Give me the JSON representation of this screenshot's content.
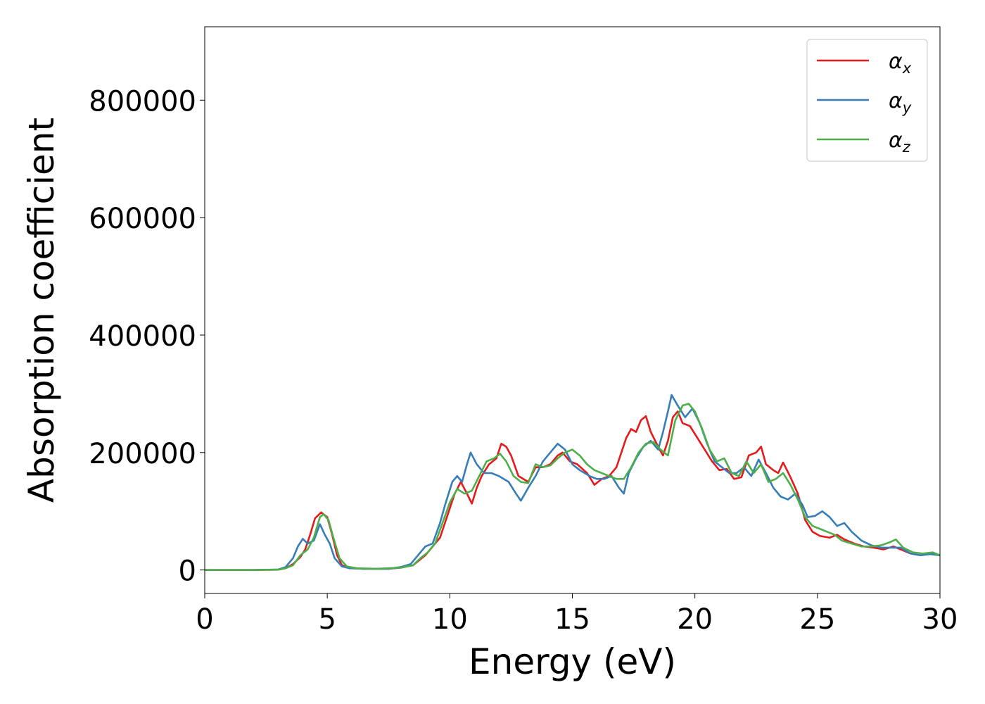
{
  "chart_data": {
    "type": "line",
    "title": "",
    "xlabel": "Energy (eV)",
    "ylabel": "Absorption coefficient",
    "xlim": [
      0,
      30
    ],
    "ylim": [
      -40000,
      925000
    ],
    "xticks": [
      0,
      5,
      10,
      15,
      20,
      25,
      30
    ],
    "xtick_labels": [
      "0",
      "5",
      "10",
      "15",
      "20",
      "25",
      "30"
    ],
    "yticks": [
      0,
      200000,
      400000,
      600000,
      800000
    ],
    "ytick_labels": [
      "0",
      "200000",
      "400000",
      "600000",
      "800000"
    ],
    "grid": false,
    "legend_position": "top-right",
    "series": [
      {
        "name": "α",
        "subscript": "x",
        "color": "#e41a1c",
        "points": [
          [
            0,
            0
          ],
          [
            1,
            0
          ],
          [
            2,
            0
          ],
          [
            3,
            500
          ],
          [
            3.3,
            3000
          ],
          [
            3.6,
            10000
          ],
          [
            3.9,
            22000
          ],
          [
            4.1,
            35000
          ],
          [
            4.3,
            60000
          ],
          [
            4.5,
            88000
          ],
          [
            4.75,
            98000
          ],
          [
            5.0,
            90000
          ],
          [
            5.2,
            60000
          ],
          [
            5.4,
            25000
          ],
          [
            5.6,
            8000
          ],
          [
            5.9,
            3000
          ],
          [
            6.5,
            2000
          ],
          [
            7.5,
            2000
          ],
          [
            8.0,
            4000
          ],
          [
            8.5,
            8000
          ],
          [
            9.0,
            25000
          ],
          [
            9.3,
            40000
          ],
          [
            9.6,
            55000
          ],
          [
            9.8,
            80000
          ],
          [
            10.0,
            105000
          ],
          [
            10.2,
            130000
          ],
          [
            10.45,
            150000
          ],
          [
            10.7,
            130000
          ],
          [
            10.9,
            113000
          ],
          [
            11.1,
            140000
          ],
          [
            11.3,
            160000
          ],
          [
            11.6,
            180000
          ],
          [
            11.9,
            190000
          ],
          [
            12.1,
            215000
          ],
          [
            12.3,
            210000
          ],
          [
            12.5,
            195000
          ],
          [
            12.8,
            160000
          ],
          [
            13.2,
            150000
          ],
          [
            13.5,
            175000
          ],
          [
            13.8,
            175000
          ],
          [
            14.1,
            180000
          ],
          [
            14.4,
            195000
          ],
          [
            14.6,
            200000
          ],
          [
            14.9,
            185000
          ],
          [
            15.2,
            180000
          ],
          [
            15.6,
            165000
          ],
          [
            15.9,
            145000
          ],
          [
            16.2,
            155000
          ],
          [
            16.5,
            160000
          ],
          [
            16.8,
            175000
          ],
          [
            17.0,
            200000
          ],
          [
            17.2,
            225000
          ],
          [
            17.4,
            240000
          ],
          [
            17.6,
            235000
          ],
          [
            17.8,
            255000
          ],
          [
            18.0,
            262000
          ],
          [
            18.2,
            235000
          ],
          [
            18.5,
            210000
          ],
          [
            18.7,
            195000
          ],
          [
            18.9,
            220000
          ],
          [
            19.1,
            260000
          ],
          [
            19.3,
            270000
          ],
          [
            19.5,
            250000
          ],
          [
            19.8,
            245000
          ],
          [
            20.1,
            225000
          ],
          [
            20.4,
            205000
          ],
          [
            20.7,
            185000
          ],
          [
            21.0,
            170000
          ],
          [
            21.3,
            172000
          ],
          [
            21.6,
            155000
          ],
          [
            21.9,
            158000
          ],
          [
            22.2,
            195000
          ],
          [
            22.5,
            200000
          ],
          [
            22.7,
            210000
          ],
          [
            22.9,
            180000
          ],
          [
            23.2,
            170000
          ],
          [
            23.4,
            165000
          ],
          [
            23.6,
            183000
          ],
          [
            23.9,
            158000
          ],
          [
            24.2,
            130000
          ],
          [
            24.5,
            85000
          ],
          [
            24.8,
            65000
          ],
          [
            25.1,
            58000
          ],
          [
            25.5,
            55000
          ],
          [
            25.8,
            60000
          ],
          [
            26.1,
            52000
          ],
          [
            26.5,
            45000
          ],
          [
            26.9,
            40000
          ],
          [
            27.3,
            38000
          ],
          [
            27.7,
            35000
          ],
          [
            28.1,
            40000
          ],
          [
            28.4,
            35000
          ],
          [
            28.8,
            28000
          ],
          [
            29.2,
            25000
          ],
          [
            29.6,
            28000
          ],
          [
            30,
            25000
          ]
        ]
      },
      {
        "name": "α",
        "subscript": "y",
        "color": "#377eb8",
        "points": [
          [
            0,
            0
          ],
          [
            1,
            0
          ],
          [
            2,
            0
          ],
          [
            3,
            800
          ],
          [
            3.3,
            5000
          ],
          [
            3.6,
            20000
          ],
          [
            3.8,
            40000
          ],
          [
            4.0,
            53000
          ],
          [
            4.2,
            45000
          ],
          [
            4.45,
            50000
          ],
          [
            4.7,
            78000
          ],
          [
            4.9,
            60000
          ],
          [
            5.1,
            45000
          ],
          [
            5.3,
            20000
          ],
          [
            5.6,
            6000
          ],
          [
            5.9,
            3000
          ],
          [
            6.5,
            2000
          ],
          [
            7.5,
            2000
          ],
          [
            8.0,
            5000
          ],
          [
            8.4,
            10000
          ],
          [
            8.7,
            25000
          ],
          [
            9.0,
            40000
          ],
          [
            9.3,
            45000
          ],
          [
            9.6,
            80000
          ],
          [
            9.8,
            110000
          ],
          [
            10.1,
            150000
          ],
          [
            10.3,
            160000
          ],
          [
            10.5,
            150000
          ],
          [
            10.7,
            180000
          ],
          [
            10.85,
            200000
          ],
          [
            11.1,
            180000
          ],
          [
            11.4,
            165000
          ],
          [
            11.7,
            165000
          ],
          [
            12.0,
            160000
          ],
          [
            12.4,
            150000
          ],
          [
            12.7,
            130000
          ],
          [
            12.9,
            118000
          ],
          [
            13.2,
            140000
          ],
          [
            13.5,
            160000
          ],
          [
            13.8,
            185000
          ],
          [
            14.1,
            200000
          ],
          [
            14.4,
            215000
          ],
          [
            14.7,
            205000
          ],
          [
            15.0,
            180000
          ],
          [
            15.3,
            170000
          ],
          [
            15.7,
            160000
          ],
          [
            16.0,
            155000
          ],
          [
            16.3,
            155000
          ],
          [
            16.6,
            160000
          ],
          [
            16.9,
            140000
          ],
          [
            17.1,
            130000
          ],
          [
            17.3,
            165000
          ],
          [
            17.6,
            190000
          ],
          [
            17.9,
            210000
          ],
          [
            18.2,
            220000
          ],
          [
            18.5,
            205000
          ],
          [
            18.7,
            235000
          ],
          [
            18.9,
            270000
          ],
          [
            19.05,
            298000
          ],
          [
            19.3,
            280000
          ],
          [
            19.6,
            260000
          ],
          [
            19.9,
            275000
          ],
          [
            20.2,
            250000
          ],
          [
            20.5,
            215000
          ],
          [
            20.8,
            185000
          ],
          [
            21.1,
            175000
          ],
          [
            21.4,
            165000
          ],
          [
            21.7,
            165000
          ],
          [
            22.0,
            175000
          ],
          [
            22.3,
            160000
          ],
          [
            22.6,
            188000
          ],
          [
            22.9,
            165000
          ],
          [
            23.2,
            140000
          ],
          [
            23.5,
            125000
          ],
          [
            23.8,
            120000
          ],
          [
            24.1,
            130000
          ],
          [
            24.4,
            110000
          ],
          [
            24.6,
            90000
          ],
          [
            24.9,
            92000
          ],
          [
            25.2,
            100000
          ],
          [
            25.5,
            90000
          ],
          [
            25.8,
            75000
          ],
          [
            26.1,
            80000
          ],
          [
            26.4,
            65000
          ],
          [
            26.8,
            50000
          ],
          [
            27.2,
            42000
          ],
          [
            27.6,
            38000
          ],
          [
            28.0,
            38000
          ],
          [
            28.4,
            38000
          ],
          [
            28.8,
            28000
          ],
          [
            29.2,
            25000
          ],
          [
            29.6,
            27000
          ],
          [
            30,
            25000
          ]
        ]
      },
      {
        "name": "α",
        "subscript": "z",
        "color": "#4daf4a",
        "points": [
          [
            0,
            0
          ],
          [
            1,
            0
          ],
          [
            2,
            0
          ],
          [
            3,
            500
          ],
          [
            3.3,
            3000
          ],
          [
            3.6,
            8000
          ],
          [
            3.9,
            25000
          ],
          [
            4.2,
            35000
          ],
          [
            4.45,
            55000
          ],
          [
            4.7,
            90000
          ],
          [
            4.85,
            95000
          ],
          [
            5.05,
            85000
          ],
          [
            5.25,
            55000
          ],
          [
            5.5,
            20000
          ],
          [
            5.8,
            6000
          ],
          [
            6.2,
            3000
          ],
          [
            7,
            2000
          ],
          [
            8,
            4000
          ],
          [
            8.5,
            8000
          ],
          [
            8.8,
            20000
          ],
          [
            9.1,
            30000
          ],
          [
            9.4,
            45000
          ],
          [
            9.7,
            80000
          ],
          [
            10.0,
            115000
          ],
          [
            10.3,
            138000
          ],
          [
            10.6,
            130000
          ],
          [
            10.9,
            135000
          ],
          [
            11.2,
            160000
          ],
          [
            11.5,
            185000
          ],
          [
            11.8,
            190000
          ],
          [
            12.05,
            198000
          ],
          [
            12.3,
            185000
          ],
          [
            12.6,
            160000
          ],
          [
            12.9,
            150000
          ],
          [
            13.2,
            148000
          ],
          [
            13.5,
            180000
          ],
          [
            13.8,
            175000
          ],
          [
            14.1,
            178000
          ],
          [
            14.4,
            190000
          ],
          [
            14.7,
            200000
          ],
          [
            15.0,
            205000
          ],
          [
            15.3,
            195000
          ],
          [
            15.6,
            180000
          ],
          [
            15.9,
            170000
          ],
          [
            16.2,
            165000
          ],
          [
            16.5,
            160000
          ],
          [
            16.8,
            155000
          ],
          [
            17.1,
            155000
          ],
          [
            17.4,
            175000
          ],
          [
            17.7,
            200000
          ],
          [
            18.0,
            215000
          ],
          [
            18.3,
            218000
          ],
          [
            18.6,
            205000
          ],
          [
            18.9,
            195000
          ],
          [
            19.2,
            255000
          ],
          [
            19.5,
            280000
          ],
          [
            19.75,
            283000
          ],
          [
            20.0,
            270000
          ],
          [
            20.3,
            240000
          ],
          [
            20.6,
            205000
          ],
          [
            20.9,
            185000
          ],
          [
            21.2,
            190000
          ],
          [
            21.5,
            165000
          ],
          [
            21.8,
            160000
          ],
          [
            22.1,
            185000
          ],
          [
            22.4,
            165000
          ],
          [
            22.7,
            180000
          ],
          [
            23.0,
            150000
          ],
          [
            23.3,
            155000
          ],
          [
            23.6,
            165000
          ],
          [
            23.9,
            145000
          ],
          [
            24.2,
            120000
          ],
          [
            24.5,
            90000
          ],
          [
            24.8,
            75000
          ],
          [
            25.1,
            70000
          ],
          [
            25.4,
            65000
          ],
          [
            25.7,
            60000
          ],
          [
            26.0,
            50000
          ],
          [
            26.4,
            45000
          ],
          [
            26.8,
            40000
          ],
          [
            27.2,
            40000
          ],
          [
            27.6,
            42000
          ],
          [
            28.0,
            48000
          ],
          [
            28.2,
            52000
          ],
          [
            28.5,
            38000
          ],
          [
            28.9,
            30000
          ],
          [
            29.3,
            28000
          ],
          [
            29.7,
            30000
          ],
          [
            30,
            25000
          ]
        ]
      }
    ]
  }
}
